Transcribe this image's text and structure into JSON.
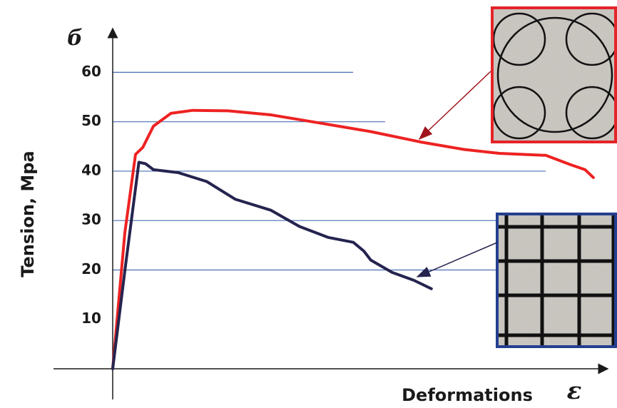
{
  "chart_data": {
    "type": "line",
    "y_label": "Tension, Mpa",
    "x_label": "Deformations",
    "y_symbol": "б",
    "x_symbol": "ε",
    "xlim": [
      0,
      100
    ],
    "ylim": [
      0,
      68
    ],
    "yticks": [
      10,
      20,
      30,
      40,
      50,
      60
    ],
    "grid": true,
    "series": [
      {
        "color": "#ee2222",
        "x": [
          0,
          2.5,
          4.7,
          6.2,
          8.4,
          12,
          16.5,
          23.8,
          32.6,
          43,
          53.2,
          63.5,
          72.4,
          79.7,
          89.3,
          94.4,
          97.4,
          99.1
        ],
        "values": [
          0,
          27.5,
          43.4,
          44.8,
          49.1,
          51.7,
          52.3,
          52.2,
          51.4,
          49.7,
          48,
          45.9,
          44.4,
          43.6,
          43.2,
          41.3,
          40.3,
          38.7
        ]
      },
      {
        "color": "#25244f",
        "x": [
          0,
          2.5,
          5.4,
          6.8,
          8.4,
          13.5,
          19.4,
          25.3,
          32.6,
          38.5,
          44.4,
          49.6,
          51.8,
          53.2,
          57.6,
          62.1,
          65.7
        ],
        "values": [
          0,
          19.8,
          41.8,
          41.5,
          40.3,
          39.7,
          37.9,
          34.3,
          32.1,
          28.8,
          26.6,
          25.6,
          23.8,
          22,
          19.5,
          17.9,
          16.2
        ]
      }
    ]
  }
}
